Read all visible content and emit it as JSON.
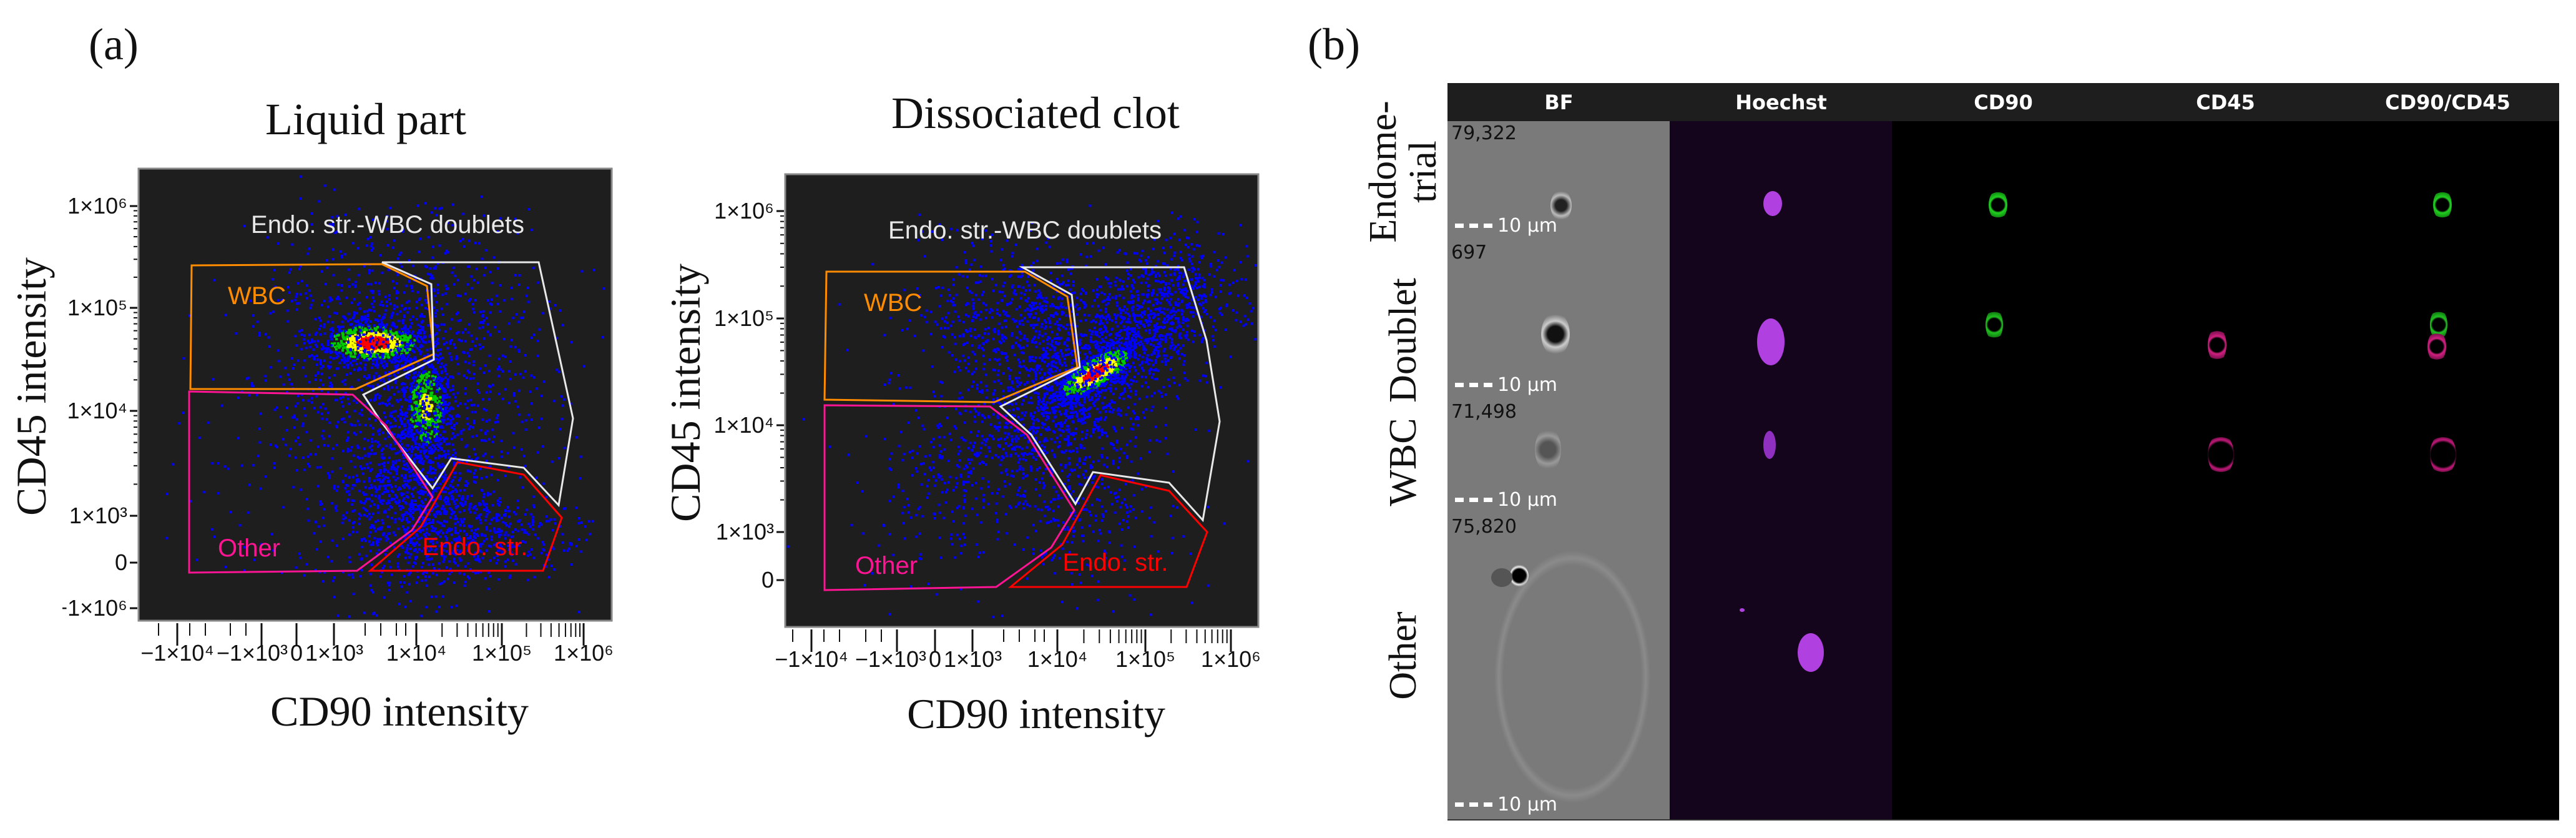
{
  "panel_a": {
    "label": "(a)",
    "plots": [
      {
        "title": "Liquid part",
        "xlabel": "CD90 intensity",
        "ylabel": "CD45 intensity"
      },
      {
        "title": "Dissociated clot",
        "xlabel": "CD90 intensity",
        "ylabel": "CD45 intensity"
      }
    ]
  },
  "chart_data": [
    {
      "type": "scatter",
      "title": "Liquid part",
      "xlabel": "CD90 intensity",
      "ylabel": "CD45 intensity",
      "x_scale": "biexponential",
      "y_scale": "biexponential",
      "x_ticks": [
        "−1×10⁴",
        "−1×10³",
        "0",
        "1×10³",
        "1×10⁴",
        "1×10⁵",
        "1×10⁶"
      ],
      "y_ticks": [
        "1×10⁶",
        "1×10⁵",
        "1×10⁴",
        "1×10³",
        "0",
        "−1×10⁶"
      ],
      "background": "#1e1e1e",
      "gates": [
        {
          "name": "WBC",
          "color": "#ff8c00"
        },
        {
          "name": "Endo. str.-WBC doublets",
          "color": "#e8e8e8"
        },
        {
          "name": "Other",
          "color": "#ff1493"
        },
        {
          "name": "Endo. str.",
          "color": "#ff0000"
        }
      ],
      "density_colors": [
        "#0000ff",
        "#00cc00",
        "#ffff00",
        "#ff0000"
      ]
    },
    {
      "type": "scatter",
      "title": "Dissociated clot",
      "xlabel": "CD90 intensity",
      "ylabel": "CD45 intensity",
      "x_scale": "biexponential",
      "y_scale": "biexponential",
      "x_ticks": [
        "−1×10⁴",
        "−1×10³",
        "0",
        "1×10³",
        "1×10⁴",
        "1×10⁵",
        "1×10⁶"
      ],
      "y_ticks": [
        "1×10⁶",
        "1×10⁵",
        "1×10⁴",
        "1×10³",
        "0"
      ],
      "background": "#1e1e1e",
      "gates": [
        {
          "name": "WBC",
          "color": "#ff8c00"
        },
        {
          "name": "Endo. str.-WBC doublets",
          "color": "#e8e8e8"
        },
        {
          "name": "Other",
          "color": "#ff1493"
        },
        {
          "name": "Endo. str.",
          "color": "#ff0000"
        }
      ],
      "density_colors": [
        "#0000ff",
        "#00cc00",
        "#ffff00",
        "#ff0000"
      ]
    }
  ],
  "panel_b": {
    "label": "(b)",
    "columns": [
      "BF",
      "Hoechst",
      "CD90",
      "CD45",
      "CD90/CD45"
    ],
    "scale_bar": "10 μm",
    "rows": [
      {
        "label": "Endome-\ntrial",
        "event": "79,322"
      },
      {
        "label": "Doublet",
        "event": "697"
      },
      {
        "label": "WBC",
        "event": "71,498"
      },
      {
        "label": "Other",
        "event": "75,820"
      }
    ]
  }
}
